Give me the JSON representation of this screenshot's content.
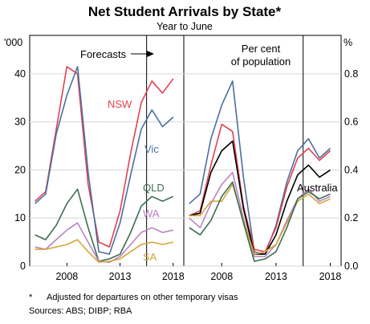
{
  "title": "Net Student Arrivals by State*",
  "subtitle": "Year to June",
  "footnote_marker": "*",
  "footnote": "Adjusted for departures on other temporary visas",
  "sources": "Sources:   ABS; DIBP; RBA",
  "colors": {
    "NSW": "#e0424f",
    "Vic": "#4a6fa0",
    "QLD": "#3b6e50",
    "WA": "#b983c2",
    "SA": "#d1a638",
    "Australia": "#000000"
  },
  "chart_data": [
    {
      "type": "line",
      "panel": "left",
      "ylabel": "'000",
      "ylim": [
        0,
        48
      ],
      "yticks": [
        0,
        10,
        20,
        30,
        40
      ],
      "xlim": [
        2004.5,
        2019
      ],
      "xticks": [
        2008,
        2013,
        2018
      ],
      "forecast_start": 2015.5,
      "annotation": "Forecasts",
      "x": [
        2005,
        2006,
        2007,
        2008,
        2009,
        2010,
        2011,
        2012,
        2013,
        2014,
        2015,
        2016,
        2017,
        2018
      ],
      "series": [
        {
          "name": "NSW",
          "values": [
            13.5,
            15.5,
            28.5,
            41.5,
            40.0,
            17.0,
            5.0,
            4.0,
            11.5,
            23.5,
            34.0,
            38.5,
            36.0,
            39.0
          ]
        },
        {
          "name": "Vic",
          "values": [
            13.0,
            15.0,
            27.5,
            35.5,
            41.5,
            19.5,
            3.0,
            2.5,
            9.0,
            19.0,
            28.5,
            32.5,
            29.0,
            31.0
          ]
        },
        {
          "name": "QLD",
          "values": [
            6.5,
            5.5,
            8.5,
            13.0,
            16.0,
            8.0,
            1.0,
            1.5,
            2.5,
            7.0,
            12.5,
            14.5,
            13.5,
            14.5
          ]
        },
        {
          "name": "WA",
          "values": [
            4.0,
            3.5,
            5.5,
            7.5,
            9.0,
            5.0,
            1.0,
            0.8,
            2.0,
            4.5,
            7.0,
            8.0,
            7.0,
            7.5
          ]
        },
        {
          "name": "SA",
          "values": [
            3.5,
            3.5,
            4.0,
            4.5,
            5.5,
            3.0,
            0.8,
            1.0,
            1.5,
            3.0,
            4.5,
            5.0,
            4.5,
            5.0
          ]
        }
      ]
    },
    {
      "type": "line",
      "panel": "right",
      "ylabel": "%",
      "ylim": [
        0,
        0.96
      ],
      "yticks": [
        0.0,
        0.2,
        0.4,
        0.6,
        0.8
      ],
      "xlim": [
        2004.5,
        2019
      ],
      "xticks": [
        2008,
        2013,
        2018
      ],
      "forecast_start": 2015.5,
      "annotation": "Per cent of population",
      "x": [
        2005,
        2006,
        2007,
        2008,
        2009,
        2010,
        2011,
        2012,
        2013,
        2014,
        2015,
        2016,
        2017,
        2018
      ],
      "series": [
        {
          "name": "Vic",
          "values": [
            0.26,
            0.3,
            0.53,
            0.67,
            0.77,
            0.37,
            0.06,
            0.05,
            0.17,
            0.35,
            0.48,
            0.53,
            0.45,
            0.49
          ]
        },
        {
          "name": "NSW",
          "values": [
            0.21,
            0.23,
            0.42,
            0.59,
            0.56,
            0.25,
            0.07,
            0.06,
            0.16,
            0.33,
            0.45,
            0.49,
            0.44,
            0.48
          ]
        },
        {
          "name": "Australia",
          "values": [
            0.21,
            0.22,
            0.39,
            0.48,
            0.52,
            0.24,
            0.05,
            0.05,
            0.13,
            0.27,
            0.38,
            0.42,
            0.37,
            0.4
          ]
        },
        {
          "name": "WA",
          "values": [
            0.2,
            0.16,
            0.26,
            0.34,
            0.39,
            0.2,
            0.04,
            0.04,
            0.09,
            0.19,
            0.28,
            0.32,
            0.27,
            0.29
          ]
        },
        {
          "name": "SA",
          "values": [
            0.21,
            0.21,
            0.27,
            0.27,
            0.34,
            0.19,
            0.05,
            0.06,
            0.09,
            0.18,
            0.27,
            0.3,
            0.26,
            0.28
          ]
        },
        {
          "name": "QLD",
          "values": [
            0.16,
            0.13,
            0.19,
            0.29,
            0.35,
            0.18,
            0.02,
            0.03,
            0.06,
            0.16,
            0.28,
            0.31,
            0.28,
            0.3
          ]
        }
      ],
      "series_labels_shown": [
        "Australia"
      ]
    }
  ]
}
